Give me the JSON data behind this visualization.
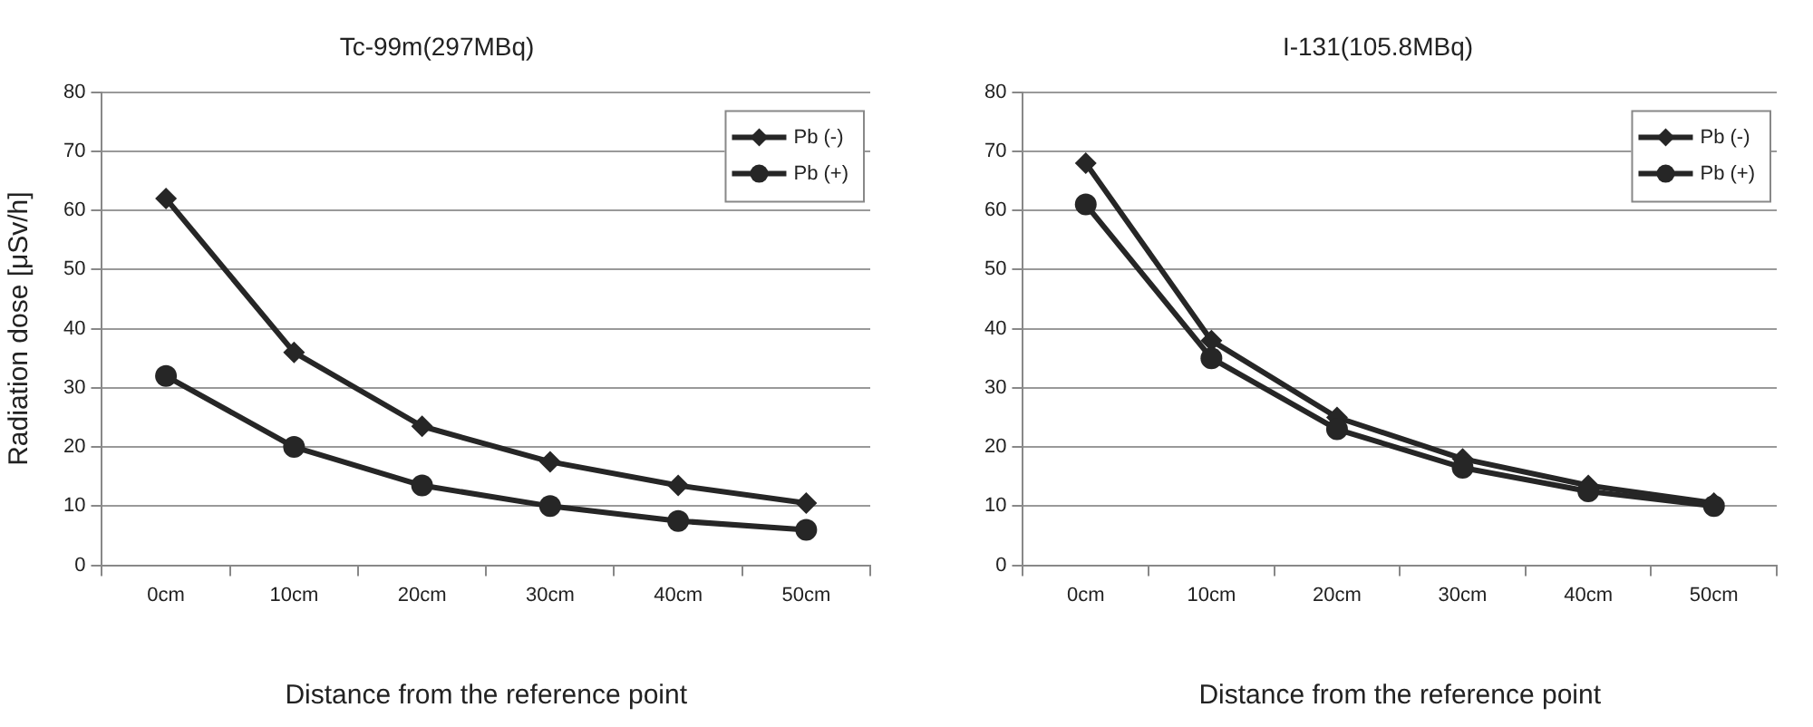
{
  "chart_data": [
    {
      "type": "line",
      "title": "Tc-99m(297MBq)",
      "xlabel": "Distance from the reference point",
      "ylabel": "Radiation dose [μSv/h]",
      "categories": [
        "0cm",
        "10cm",
        "20cm",
        "30cm",
        "40cm",
        "50cm"
      ],
      "series": [
        {
          "name": "Pb (-)",
          "color": "#262626",
          "marker": "diamond",
          "values": [
            62,
            36,
            23.5,
            17.5,
            13.5,
            10.5
          ]
        },
        {
          "name": "Pb (+)",
          "color": "#262626",
          "marker": "circle",
          "values": [
            32,
            20,
            13.5,
            10,
            7.5,
            6
          ]
        }
      ],
      "ylim": [
        0,
        80
      ],
      "yticks": [
        0,
        10,
        20,
        30,
        40,
        50,
        60,
        70,
        80
      ],
      "grid": "y",
      "legend": "top right"
    },
    {
      "type": "line",
      "title": "I-131(105.8MBq)",
      "xlabel": "Distance from the reference point",
      "categories": [
        "0cm",
        "10cm",
        "20cm",
        "30cm",
        "40cm",
        "50cm"
      ],
      "series": [
        {
          "name": "Pb (-)",
          "color": "#262626",
          "marker": "diamond",
          "values": [
            68,
            38,
            25,
            18,
            13.5,
            10.5
          ]
        },
        {
          "name": "Pb (+)",
          "color": "#262626",
          "marker": "circle",
          "values": [
            61,
            35,
            23,
            16.5,
            12.5,
            10
          ]
        }
      ],
      "ylim": [
        0,
        80
      ],
      "yticks": [
        0,
        10,
        20,
        30,
        40,
        50,
        60,
        70,
        80
      ],
      "grid": "y",
      "legend": "top right"
    }
  ]
}
